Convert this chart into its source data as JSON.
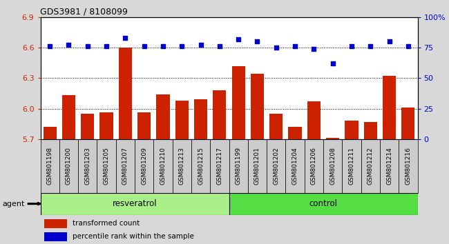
{
  "title": "GDS3981 / 8108099",
  "categories": [
    "GSM801198",
    "GSM801200",
    "GSM801203",
    "GSM801205",
    "GSM801207",
    "GSM801209",
    "GSM801210",
    "GSM801213",
    "GSM801215",
    "GSM801217",
    "GSM801199",
    "GSM801201",
    "GSM801202",
    "GSM801204",
    "GSM801206",
    "GSM801208",
    "GSM801211",
    "GSM801212",
    "GSM801214",
    "GSM801216"
  ],
  "bar_values": [
    5.82,
    6.13,
    5.95,
    5.96,
    6.6,
    5.96,
    6.14,
    6.08,
    6.09,
    6.18,
    6.42,
    6.34,
    5.95,
    5.82,
    6.07,
    5.71,
    5.88,
    5.87,
    6.32,
    6.01
  ],
  "percentile_values": [
    76,
    77,
    76,
    76,
    83,
    76,
    76,
    76,
    77,
    76,
    82,
    80,
    75,
    76,
    74,
    62,
    76,
    76,
    80,
    76
  ],
  "group1_label": "resveratrol",
  "group2_label": "control",
  "group1_count": 10,
  "group2_count": 10,
  "ylim_left": [
    5.7,
    6.9
  ],
  "ylim_right": [
    0,
    100
  ],
  "yticks_left": [
    5.7,
    6.0,
    6.3,
    6.6,
    6.9
  ],
  "yticks_right": [
    0,
    25,
    50,
    75,
    100
  ],
  "ytick_labels_right": [
    "0",
    "25",
    "50",
    "75",
    "100%"
  ],
  "bar_color": "#cc2200",
  "dot_color": "#0000cc",
  "group1_bg": "#aaf088",
  "group2_bg": "#55dd44",
  "agent_label": "agent",
  "legend_bar": "transformed count",
  "legend_dot": "percentile rank within the sample",
  "background_color": "#d8d8d8",
  "label_box_color": "#cccccc",
  "plot_bg": "#ffffff",
  "bar_width": 0.7
}
